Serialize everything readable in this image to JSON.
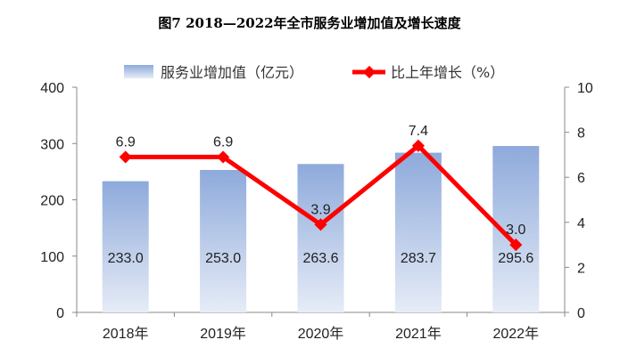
{
  "chart_data": {
    "type": "bar+line",
    "title": "图7  2018—2022年全市服务业增加值及增长速度",
    "categories": [
      "2018年",
      "2019年",
      "2020年",
      "2021年",
      "2022年"
    ],
    "series": [
      {
        "name": "服务业增加值（亿元）",
        "type": "bar",
        "axis": "left",
        "values": [
          233.0,
          253.0,
          263.6,
          283.7,
          295.6
        ],
        "labels": [
          "233.0",
          "253.0",
          "263.6",
          "283.7",
          "295.6"
        ],
        "color": "#8eaadb"
      },
      {
        "name": "比上年增长（%）",
        "type": "line",
        "axis": "right",
        "values": [
          6.9,
          6.9,
          3.9,
          7.4,
          3.0
        ],
        "labels": [
          "6.9",
          "6.9",
          "3.9",
          "7.4",
          "3.0"
        ],
        "color": "#ff0000"
      }
    ],
    "y_left": {
      "range": [
        0,
        400
      ],
      "ticks": [
        "0",
        "100",
        "200",
        "300",
        "400"
      ]
    },
    "y_right": {
      "range": [
        0,
        10
      ],
      "ticks": [
        "0",
        "2",
        "4",
        "6",
        "8",
        "10"
      ]
    },
    "legend": "top",
    "grid": false
  }
}
